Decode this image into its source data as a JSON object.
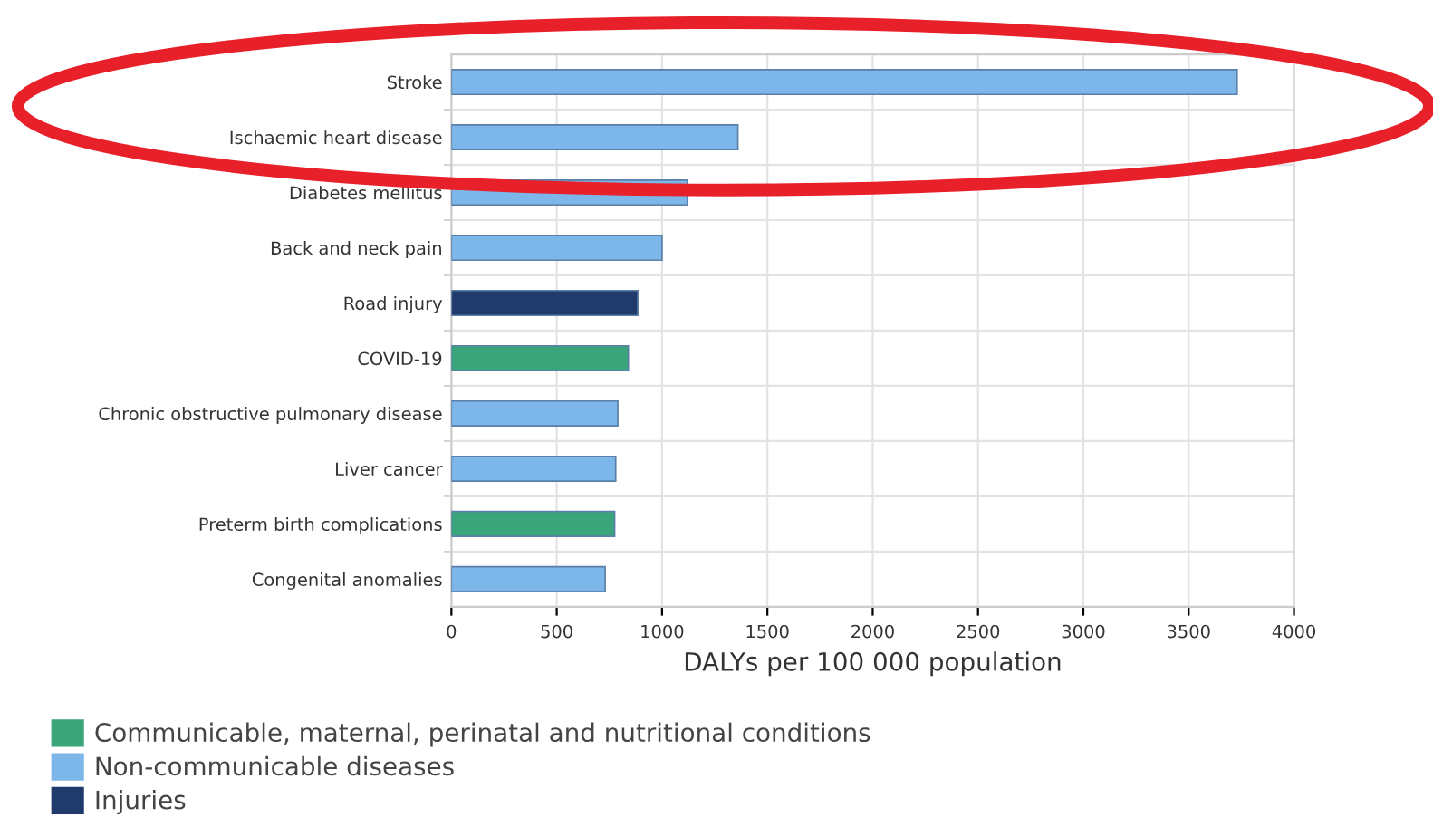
{
  "chart_data": {
    "type": "bar",
    "orientation": "horizontal",
    "xlabel": "DALYs per 100 000 population",
    "categories": [
      "Stroke",
      "Ischaemic heart disease",
      "Diabetes mellitus",
      "Back and neck pain",
      "Road injury",
      "COVID-19",
      "Chronic obstructive pulmonary disease",
      "Liver cancer",
      "Preterm birth complications",
      "Congenital anomalies"
    ],
    "series": [
      {
        "name": "Communicable, maternal, perinatal and nutritional conditions",
        "color": "#3aa57a",
        "values": [
          null,
          null,
          null,
          null,
          null,
          840,
          null,
          null,
          775,
          null
        ]
      },
      {
        "name": "Non-communicable diseases",
        "color": "#7db6e8",
        "values": [
          3730,
          1360,
          1120,
          1000,
          null,
          null,
          790,
          780,
          null,
          730
        ]
      },
      {
        "name": "Injuries",
        "color": "#1f3a6b",
        "values": [
          null,
          null,
          null,
          null,
          885,
          null,
          null,
          null,
          null,
          null
        ]
      }
    ],
    "xlim": [
      0,
      4000
    ],
    "xticks": [
      0,
      500,
      1000,
      1500,
      2000,
      2500,
      3000,
      3500,
      4000
    ],
    "grid": true,
    "legend": "bottom left"
  }
}
